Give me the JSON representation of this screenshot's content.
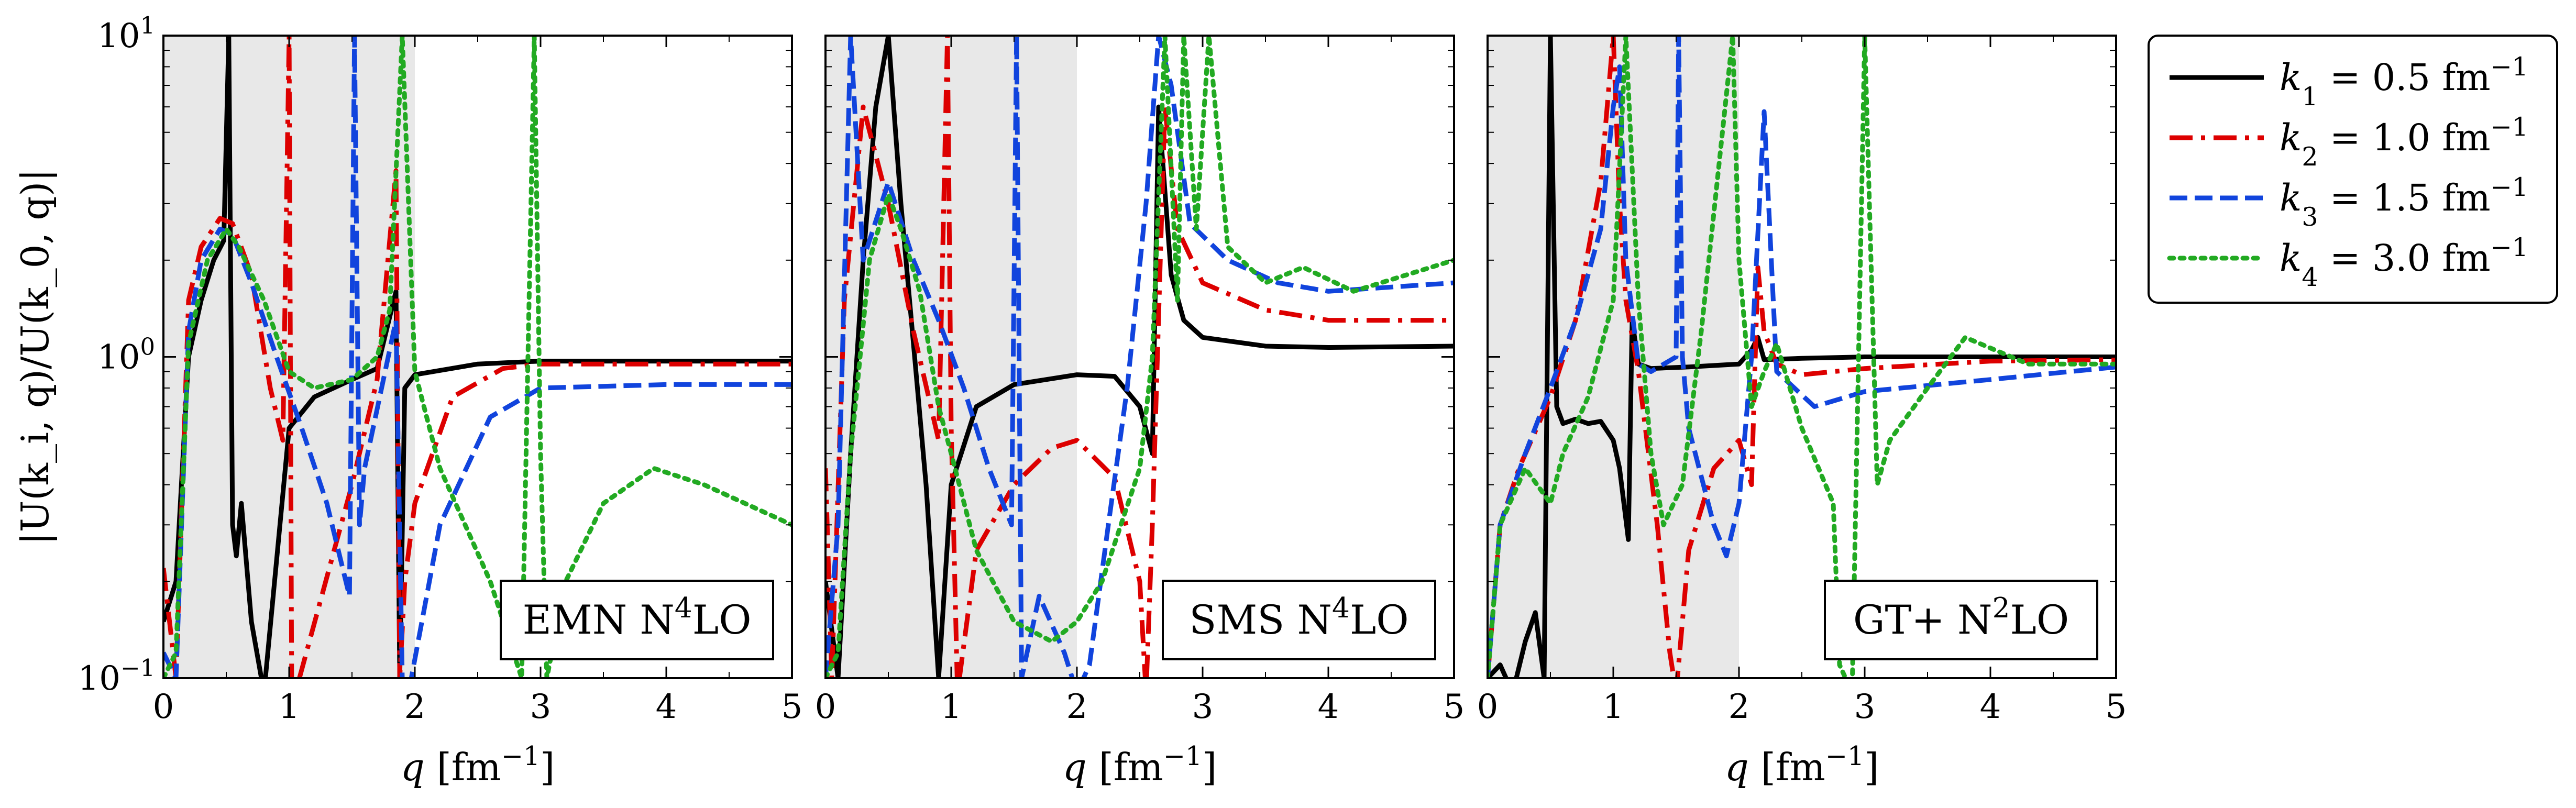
{
  "chart_data": {
    "type": "line",
    "ylabel": "|U(k_i, q)/U(k_0, q)|",
    "yscale": "log",
    "ylim": [
      0.1,
      10
    ],
    "xlim": [
      0,
      5
    ],
    "x_ticks": [
      "0",
      "1",
      "2",
      "3",
      "4",
      "5"
    ],
    "y_ticks": [
      "10^-1",
      "10^0",
      "10^1"
    ],
    "xlabel": "q [fm^-1]",
    "shaded_region": [
      0,
      2
    ],
    "legend_position": "outside-right",
    "colors": {
      "k1": "#000000",
      "k2": "#dd0000",
      "k3": "#1144dd",
      "k4": "#22aa22",
      "shade": "#e8e8e8"
    },
    "legend": [
      {
        "key": "k1",
        "label": "k1 = 0.5 fm^-1",
        "style": "solid"
      },
      {
        "key": "k2",
        "label": "k2 = 1.0 fm^-1",
        "style": "dashdot"
      },
      {
        "key": "k3",
        "label": "k3 = 1.5 fm^-1",
        "style": "dashed"
      },
      {
        "key": "k4",
        "label": "k4 = 3.0 fm^-1",
        "style": "dotted"
      }
    ],
    "panels": [
      {
        "label": "EMN N4LO",
        "series": [
          {
            "key": "k1",
            "x": [
              0.0,
              0.1,
              0.2,
              0.3,
              0.4,
              0.48,
              0.52,
              0.55,
              0.58,
              0.62,
              0.7,
              0.8,
              1.0,
              1.2,
              1.5,
              1.7,
              1.85,
              1.88,
              1.92,
              2.0,
              2.5,
              3.0,
              4.0,
              5.0
            ],
            "y": [
              0.15,
              0.2,
              1.0,
              1.5,
              2.0,
              2.3,
              10.0,
              0.3,
              0.24,
              0.35,
              0.15,
              0.09,
              0.6,
              0.75,
              0.85,
              0.92,
              1.6,
              0.1,
              0.8,
              0.88,
              0.95,
              0.97,
              0.97,
              0.97
            ]
          },
          {
            "key": "k2",
            "x": [
              0.0,
              0.1,
              0.2,
              0.3,
              0.45,
              0.55,
              0.7,
              0.85,
              0.95,
              1.0,
              1.02,
              1.05,
              1.5,
              1.7,
              1.85,
              1.88,
              1.92,
              2.0,
              2.3,
              2.7,
              3.0,
              4.0,
              5.0
            ],
            "y": [
              0.22,
              0.1,
              1.5,
              2.2,
              2.7,
              2.6,
              1.8,
              0.8,
              0.55,
              10.0,
              0.1,
              0.09,
              0.4,
              0.85,
              3.8,
              0.1,
              0.2,
              0.35,
              0.75,
              0.92,
              0.95,
              0.95,
              0.95
            ]
          },
          {
            "key": "k3",
            "x": [
              0.0,
              0.1,
              0.2,
              0.3,
              0.45,
              0.55,
              0.7,
              0.9,
              1.1,
              1.3,
              1.48,
              1.52,
              1.56,
              1.6,
              1.75,
              1.85,
              1.9,
              1.95,
              2.2,
              2.6,
              3.0,
              4.0,
              5.0
            ],
            "y": [
              0.12,
              0.1,
              1.2,
              2.0,
              2.5,
              2.4,
              1.7,
              1.0,
              0.6,
              0.35,
              0.18,
              10.0,
              0.3,
              0.45,
              0.85,
              1.3,
              0.1,
              0.09,
              0.3,
              0.65,
              0.8,
              0.82,
              0.82
            ]
          },
          {
            "key": "k4",
            "x": [
              0.0,
              0.1,
              0.2,
              0.35,
              0.5,
              0.6,
              0.8,
              1.0,
              1.2,
              1.5,
              1.7,
              1.8,
              1.9,
              2.0,
              2.2,
              2.6,
              2.85,
              2.95,
              3.0,
              3.05,
              3.2,
              3.5,
              3.9,
              4.3,
              5.0
            ],
            "y": [
              0.1,
              0.12,
              1.1,
              2.0,
              2.5,
              2.2,
              1.5,
              0.9,
              0.8,
              0.85,
              1.0,
              1.4,
              10.0,
              0.9,
              0.45,
              0.2,
              0.1,
              10.0,
              0.5,
              0.1,
              0.2,
              0.35,
              0.45,
              0.4,
              0.3
            ]
          }
        ]
      },
      {
        "label": "SMS N4LO",
        "series": [
          {
            "key": "k1",
            "x": [
              0.0,
              0.1,
              0.2,
              0.3,
              0.4,
              0.5,
              0.6,
              0.8,
              0.9,
              1.0,
              1.2,
              1.5,
              2.0,
              2.3,
              2.5,
              2.6,
              2.65,
              2.75,
              2.85,
              3.0,
              3.5,
              4.0,
              5.0
            ],
            "y": [
              0.2,
              0.1,
              0.5,
              2.0,
              6.0,
              10.0,
              3.0,
              0.4,
              0.1,
              0.4,
              0.7,
              0.82,
              0.88,
              0.87,
              0.7,
              0.5,
              6.0,
              1.8,
              1.3,
              1.15,
              1.08,
              1.07,
              1.08
            ]
          },
          {
            "key": "k2",
            "x": [
              0.0,
              0.05,
              0.15,
              0.3,
              0.5,
              0.7,
              0.9,
              0.97,
              1.0,
              1.05,
              1.2,
              1.5,
              1.8,
              2.0,
              2.3,
              2.5,
              2.55,
              2.6,
              2.7,
              2.8,
              3.0,
              3.5,
              4.0,
              5.0
            ],
            "y": [
              0.45,
              0.1,
              1.5,
              6.0,
              3.0,
              1.2,
              0.55,
              10.0,
              0.6,
              0.09,
              0.25,
              0.4,
              0.52,
              0.55,
              0.42,
              0.2,
              0.09,
              0.3,
              6.0,
              2.5,
              1.7,
              1.4,
              1.3,
              1.3
            ]
          },
          {
            "key": "k3",
            "x": [
              0.0,
              0.1,
              0.2,
              0.3,
              0.5,
              0.7,
              0.9,
              1.1,
              1.3,
              1.48,
              1.52,
              1.56,
              1.7,
              1.9,
              2.0,
              2.1,
              2.25,
              2.4,
              2.55,
              2.65,
              2.75,
              2.9,
              3.2,
              3.6,
              4.0,
              5.0
            ],
            "y": [
              0.1,
              0.3,
              10.0,
              2.0,
              3.5,
              2.0,
              1.3,
              0.8,
              0.45,
              0.3,
              10.0,
              0.1,
              0.18,
              0.12,
              0.09,
              0.11,
              0.3,
              0.8,
              3.0,
              10.0,
              7.0,
              2.6,
              2.0,
              1.7,
              1.6,
              1.7
            ]
          },
          {
            "key": "k4",
            "x": [
              0.0,
              0.1,
              0.2,
              0.35,
              0.5,
              0.6,
              0.75,
              0.9,
              1.0,
              1.2,
              1.5,
              1.8,
              2.0,
              2.2,
              2.5,
              2.6,
              2.7,
              2.8,
              2.85,
              2.95,
              3.05,
              3.2,
              3.5,
              3.8,
              4.2,
              5.0
            ],
            "y": [
              0.1,
              0.12,
              0.5,
              2.0,
              3.2,
              2.5,
              1.6,
              0.7,
              0.5,
              0.25,
              0.15,
              0.13,
              0.15,
              0.2,
              0.45,
              1.0,
              10.0,
              1.5,
              10.0,
              2.5,
              10.0,
              2.2,
              1.7,
              1.9,
              1.6,
              2.0
            ]
          }
        ]
      },
      {
        "label": "GT+ N2LO",
        "series": [
          {
            "key": "k1",
            "x": [
              0.0,
              0.1,
              0.2,
              0.3,
              0.38,
              0.45,
              0.5,
              0.55,
              0.6,
              0.7,
              0.8,
              0.9,
              1.0,
              1.05,
              1.12,
              1.15,
              1.2,
              1.3,
              1.6,
              2.0,
              2.1,
              2.15,
              2.2,
              2.5,
              3.0,
              4.0,
              5.0
            ],
            "y": [
              0.1,
              0.11,
              0.09,
              0.13,
              0.16,
              0.1,
              10.0,
              0.7,
              0.62,
              0.64,
              0.62,
              0.63,
              0.55,
              0.45,
              0.27,
              1.3,
              0.95,
              0.92,
              0.93,
              0.95,
              1.05,
              1.15,
              0.98,
              0.99,
              1.0,
              1.0,
              1.0
            ]
          },
          {
            "key": "k2",
            "x": [
              0.0,
              0.1,
              0.25,
              0.5,
              0.7,
              0.9,
              1.0,
              1.05,
              1.1,
              1.2,
              1.35,
              1.45,
              1.5,
              1.6,
              1.8,
              2.0,
              2.1,
              2.15,
              2.2,
              2.3,
              2.5,
              3.0,
              4.0,
              5.0
            ],
            "y": [
              0.1,
              0.3,
              0.45,
              0.75,
              1.3,
              3.5,
              10.0,
              3.0,
              1.5,
              0.9,
              0.3,
              0.12,
              0.09,
              0.25,
              0.45,
              0.55,
              0.4,
              1.9,
              1.2,
              0.95,
              0.88,
              0.92,
              0.97,
              0.98
            ]
          },
          {
            "key": "k3",
            "x": [
              0.0,
              0.1,
              0.3,
              0.5,
              0.7,
              0.9,
              1.0,
              1.05,
              1.1,
              1.2,
              1.3,
              1.5,
              1.52,
              1.55,
              1.6,
              1.8,
              1.9,
              2.0,
              2.1,
              2.2,
              2.3,
              2.6,
              3.0,
              4.0,
              5.0
            ],
            "y": [
              0.1,
              0.3,
              0.5,
              0.8,
              1.3,
              2.5,
              6.0,
              8.0,
              2.0,
              0.95,
              0.9,
              1.0,
              10.0,
              1.0,
              0.6,
              0.3,
              0.24,
              0.35,
              1.0,
              5.8,
              0.9,
              0.7,
              0.78,
              0.85,
              0.93
            ]
          },
          {
            "key": "k4",
            "x": [
              0.0,
              0.1,
              0.3,
              0.5,
              0.6,
              0.8,
              1.0,
              1.1,
              1.2,
              1.3,
              1.4,
              1.55,
              1.7,
              1.95,
              2.0,
              2.1,
              2.2,
              2.3,
              2.5,
              2.75,
              2.8,
              2.9,
              3.0,
              3.1,
              3.2,
              3.5,
              3.8,
              4.3,
              5.0
            ],
            "y": [
              0.1,
              0.3,
              0.45,
              0.35,
              0.5,
              0.75,
              1.5,
              10.0,
              1.5,
              0.5,
              0.3,
              0.4,
              1.2,
              10.0,
              2.0,
              0.7,
              0.9,
              1.1,
              0.6,
              0.35,
              0.11,
              0.09,
              10.0,
              0.4,
              0.55,
              0.8,
              1.15,
              0.95,
              0.95
            ]
          }
        ]
      }
    ]
  }
}
